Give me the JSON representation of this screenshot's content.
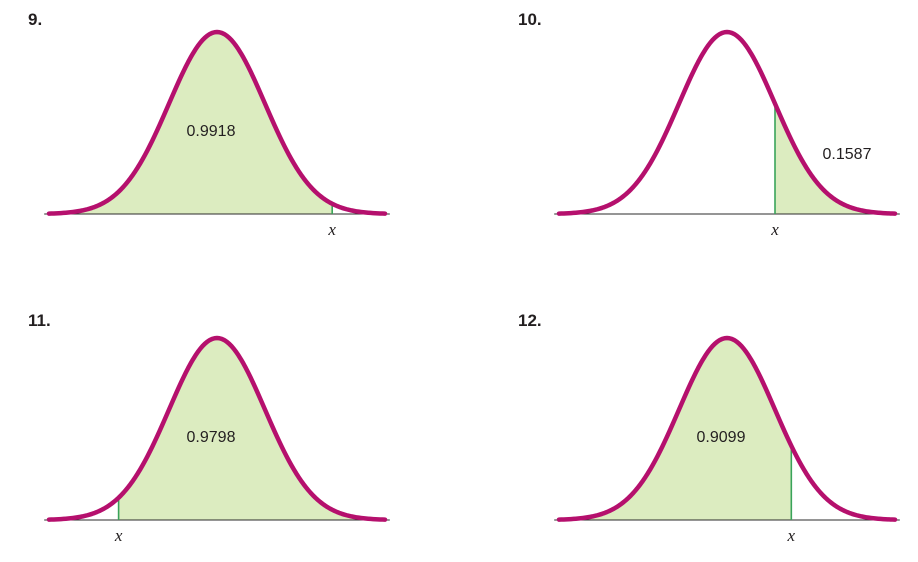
{
  "colors": {
    "curve": "#b5106d",
    "shaded_fill": "#dcecc0",
    "boundary_line": "#3aa35a",
    "axis": "#2b2b2b",
    "text": "#231f20"
  },
  "chart_data": [
    {
      "type": "area",
      "problem_number": "9.",
      "distribution": "standard normal curve",
      "area_value": 0.9918,
      "area_label": "0.9918",
      "shaded_region": "left_of_x",
      "x_boundary_z": 2.4,
      "x_axis_label": "x",
      "label_placement": "center",
      "axis_ticks": [],
      "grid": false
    },
    {
      "type": "area",
      "problem_number": "10.",
      "distribution": "standard normal curve",
      "area_value": 0.1587,
      "area_label": "0.1587",
      "shaded_region": "right_of_x",
      "x_boundary_z": 1.0,
      "x_axis_label": "x",
      "label_placement": "right_of_boundary",
      "axis_ticks": [],
      "grid": false
    },
    {
      "type": "area",
      "problem_number": "11.",
      "distribution": "standard normal curve",
      "area_value": 0.9798,
      "area_label": "0.9798",
      "shaded_region": "right_of_x",
      "x_boundary_z": -2.05,
      "x_axis_label": "x",
      "label_placement": "center",
      "axis_ticks": [],
      "grid": false
    },
    {
      "type": "area",
      "problem_number": "12.",
      "distribution": "standard normal curve",
      "area_value": 0.9099,
      "area_label": "0.9099",
      "shaded_region": "left_of_x",
      "x_boundary_z": 1.34,
      "x_axis_label": "x",
      "label_placement": "center",
      "axis_ticks": [],
      "grid": false
    }
  ]
}
